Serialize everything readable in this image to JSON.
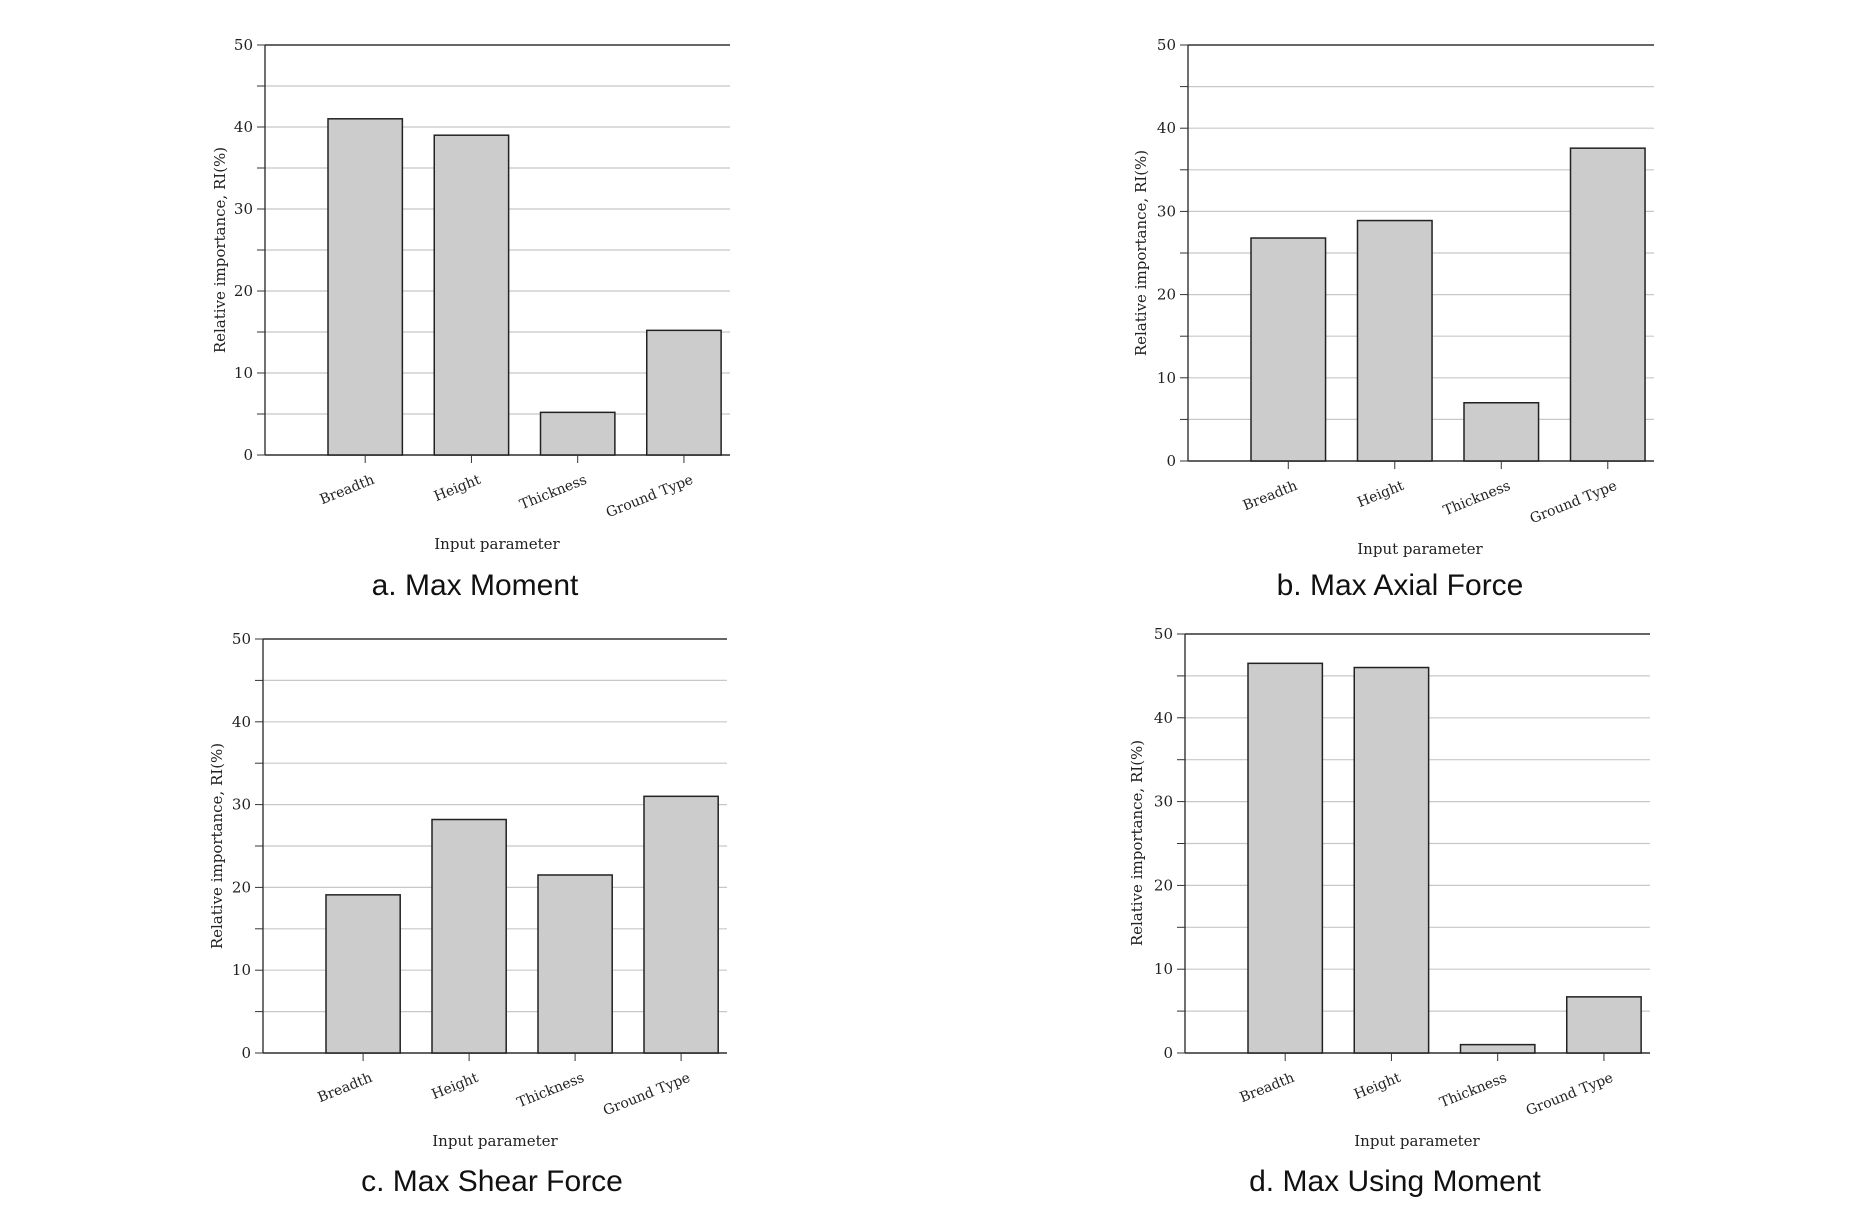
{
  "chart_data": [
    {
      "type": "bar",
      "caption": "a.  Max  Moment",
      "categories": [
        "Breadth",
        "Height",
        "Thickness",
        "Ground Type"
      ],
      "values": [
        41,
        39,
        5.2,
        15.2
      ],
      "xlabel": "Input parameter",
      "ylabel": "Relative importance, RI(%)",
      "ylim": [
        0,
        50
      ],
      "yticks": [
        0,
        10,
        20,
        30,
        40,
        50
      ],
      "grid": true
    },
    {
      "type": "bar",
      "caption": "b.  Max  Axial  Force",
      "categories": [
        "Breadth",
        "Height",
        "Thickness",
        "Ground Type"
      ],
      "values": [
        26.8,
        28.9,
        7.0,
        37.6
      ],
      "xlabel": "Input parameter",
      "ylabel": "Relative importance, RI(%)",
      "ylim": [
        0,
        50
      ],
      "yticks": [
        0,
        10,
        20,
        30,
        40,
        50
      ],
      "grid": true
    },
    {
      "type": "bar",
      "caption": "c.  Max  Shear  Force",
      "categories": [
        "Breadth",
        "Height",
        "Thickness",
        "Ground Type"
      ],
      "values": [
        19.1,
        28.2,
        21.5,
        31.0
      ],
      "xlabel": "Input parameter",
      "ylabel": "Relative importance, RI(%)",
      "ylim": [
        0,
        50
      ],
      "yticks": [
        0,
        10,
        20,
        30,
        40,
        50
      ],
      "grid": true
    },
    {
      "type": "bar",
      "caption": "d.  Max  Using  Moment",
      "categories": [
        "Breadth",
        "Height",
        "Thickness",
        "Ground Type"
      ],
      "values": [
        46.5,
        46.0,
        1.0,
        6.7
      ],
      "xlabel": "Input parameter",
      "ylabel": "Relative importance, RI(%)",
      "ylim": [
        0,
        50
      ],
      "yticks": [
        0,
        10,
        20,
        30,
        40,
        50
      ],
      "grid": true
    }
  ],
  "colors": {
    "bar_fill": "#cccccc",
    "bar_stroke": "#222222",
    "grid": "#c8c8c8",
    "axis": "#333333"
  }
}
